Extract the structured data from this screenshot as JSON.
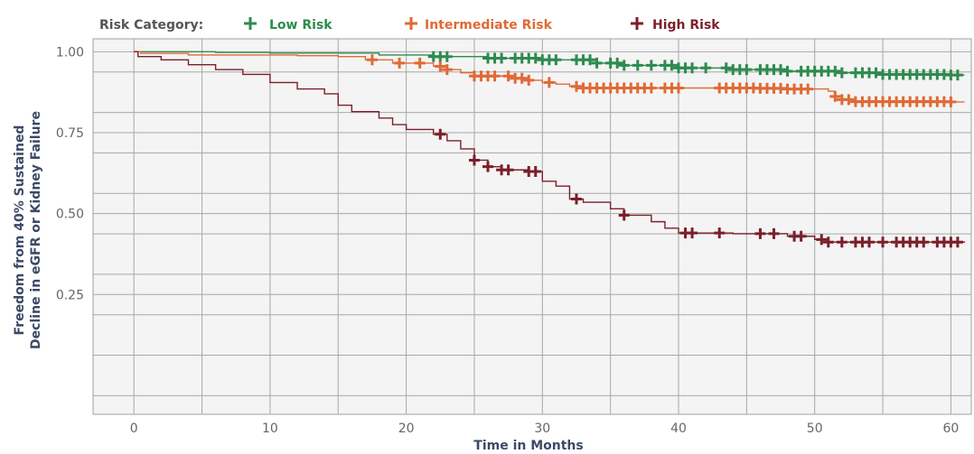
{
  "chart_data": {
    "type": "line",
    "subtype": "kaplan-meier survival",
    "legend_title": "Risk Category:",
    "xlabel": "Time in Months",
    "ylabel_lines": [
      "Freedom from 40% Sustained",
      "Decline in eGFR or Kidney Failure"
    ],
    "xlim": [
      -3,
      61.5
    ],
    "ylim": [
      -0.12,
      1.04
    ],
    "x_ticks": [
      0,
      10,
      20,
      30,
      40,
      50,
      60
    ],
    "x_tick_labels": [
      "0",
      "10",
      "20",
      "30",
      "40",
      "50",
      "60"
    ],
    "y_ticks": [
      0.25,
      0.5,
      0.75,
      1.0
    ],
    "y_tick_labels": [
      "0.25",
      "0.50",
      "0.75",
      "1.00"
    ],
    "x_grid": [
      0,
      5,
      10,
      15,
      20,
      25,
      30,
      35,
      40,
      45,
      50,
      55,
      60
    ],
    "y_grid": [
      -0.0625,
      0.0625,
      0.1875,
      0.3125,
      0.4375,
      0.5625,
      0.6875,
      0.8125,
      0.9375
    ],
    "grid": true,
    "legend_position": "top",
    "series": [
      {
        "name": "Low Risk",
        "color": "#2e8b4e",
        "points": [
          [
            0,
            1.0
          ],
          [
            6,
            0.998
          ],
          [
            10,
            0.996
          ],
          [
            18,
            0.99
          ],
          [
            22,
            0.985
          ],
          [
            26,
            0.98
          ],
          [
            30,
            0.975
          ],
          [
            34,
            0.965
          ],
          [
            36,
            0.958
          ],
          [
            40,
            0.95
          ],
          [
            44,
            0.945
          ],
          [
            48,
            0.94
          ],
          [
            52,
            0.935
          ],
          [
            55,
            0.93
          ],
          [
            60,
            0.928
          ],
          [
            61,
            0.928
          ]
        ],
        "censors": [
          22,
          22.5,
          23,
          26,
          26.5,
          27,
          28,
          28.5,
          29,
          29.5,
          30,
          30.5,
          31,
          32.5,
          33,
          33.5,
          34,
          35,
          35.5,
          36,
          37,
          38,
          39,
          39.5,
          40,
          40.5,
          41,
          42,
          43.5,
          44,
          44.5,
          45,
          46,
          46.5,
          47,
          47.5,
          48,
          49,
          49.5,
          50,
          50.5,
          51,
          51.5,
          52,
          53,
          53.5,
          54,
          54.5,
          55,
          55.5,
          56,
          56.5,
          57,
          57.5,
          58,
          58.5,
          59,
          59.5,
          60,
          60.5
        ]
      },
      {
        "name": "Intermediate Risk",
        "color": "#e06a35",
        "points": [
          [
            0,
            1.0
          ],
          [
            0.5,
            0.995
          ],
          [
            4,
            0.99
          ],
          [
            12,
            0.988
          ],
          [
            15,
            0.985
          ],
          [
            17,
            0.975
          ],
          [
            19,
            0.965
          ],
          [
            22,
            0.955
          ],
          [
            23,
            0.945
          ],
          [
            24,
            0.935
          ],
          [
            25,
            0.925
          ],
          [
            28,
            0.918
          ],
          [
            29,
            0.912
          ],
          [
            30,
            0.905
          ],
          [
            31,
            0.9
          ],
          [
            32,
            0.893
          ],
          [
            33,
            0.888
          ],
          [
            46,
            0.887
          ],
          [
            48,
            0.885
          ],
          [
            51,
            0.878
          ],
          [
            51.5,
            0.862
          ],
          [
            52,
            0.852
          ],
          [
            53,
            0.846
          ],
          [
            60,
            0.845
          ],
          [
            61,
            0.845
          ]
        ],
        "censors": [
          17.5,
          19.5,
          21,
          22.5,
          23,
          25,
          25.5,
          26,
          26.5,
          27.5,
          28,
          28.5,
          29,
          30.5,
          32.5,
          33,
          33.5,
          34,
          34.5,
          35,
          35.5,
          36,
          36.5,
          37,
          37.5,
          38,
          39,
          39.5,
          40,
          43,
          43.5,
          44,
          44.5,
          45,
          45.5,
          46,
          46.5,
          47,
          47.5,
          48,
          48.5,
          49,
          49.5,
          51.5,
          52,
          52.5,
          53,
          53.5,
          54,
          54.5,
          55,
          55.5,
          56,
          56.5,
          57,
          57.5,
          58,
          58.5,
          59,
          59.5,
          60
        ]
      },
      {
        "name": "High Risk",
        "color": "#7b1f2a",
        "points": [
          [
            0,
            1.0
          ],
          [
            0.3,
            0.985
          ],
          [
            2,
            0.975
          ],
          [
            4,
            0.96
          ],
          [
            6,
            0.945
          ],
          [
            8,
            0.93
          ],
          [
            10,
            0.905
          ],
          [
            12,
            0.885
          ],
          [
            14,
            0.87
          ],
          [
            15,
            0.835
          ],
          [
            16,
            0.815
          ],
          [
            18,
            0.795
          ],
          [
            19,
            0.775
          ],
          [
            20,
            0.76
          ],
          [
            22,
            0.745
          ],
          [
            23,
            0.725
          ],
          [
            24,
            0.7
          ],
          [
            25,
            0.665
          ],
          [
            26,
            0.645
          ],
          [
            27,
            0.635
          ],
          [
            29,
            0.63
          ],
          [
            30,
            0.6
          ],
          [
            31,
            0.585
          ],
          [
            32,
            0.545
          ],
          [
            33,
            0.535
          ],
          [
            35,
            0.515
          ],
          [
            36,
            0.495
          ],
          [
            38,
            0.475
          ],
          [
            39,
            0.455
          ],
          [
            40,
            0.44
          ],
          [
            44,
            0.438
          ],
          [
            48,
            0.43
          ],
          [
            50,
            0.42
          ],
          [
            51,
            0.412
          ],
          [
            61,
            0.41
          ]
        ],
        "censors": [
          22.5,
          25,
          26,
          27,
          27.5,
          29,
          29.5,
          32.5,
          36,
          40.5,
          41,
          43,
          46,
          47,
          48.5,
          49,
          50.5,
          51,
          52,
          53,
          53.5,
          54,
          55,
          56,
          56.5,
          57,
          57.5,
          58,
          59,
          59.5,
          60,
          60.5
        ]
      }
    ]
  }
}
